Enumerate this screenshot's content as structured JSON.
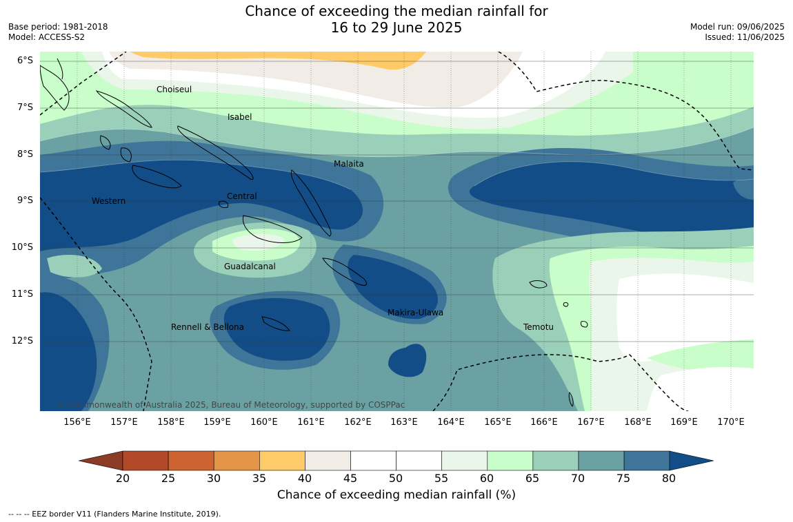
{
  "title": {
    "line1": "Chance of exceeding the median rainfall for",
    "line2": "16 to 29 June 2025"
  },
  "meta_left": {
    "base_period": "Base period: 1981-2018",
    "model": "Model: ACCESS-S2"
  },
  "meta_right": {
    "model_run": "Model run: 09/06/2025",
    "issued": "Issued: 11/06/2025"
  },
  "lat_labels": [
    "6°S",
    "7°S",
    "8°S",
    "9°S",
    "10°S",
    "11°S",
    "12°S"
  ],
  "lon_labels": [
    "156°E",
    "157°E",
    "158°E",
    "159°E",
    "160°E",
    "161°E",
    "162°E",
    "163°E",
    "164°E",
    "165°E",
    "166°E",
    "167°E",
    "168°E",
    "169°E",
    "170°E"
  ],
  "places": {
    "choiseul": "Choiseul",
    "isabel": "Isabel",
    "malaita": "Malaita",
    "western": "Western",
    "central": "Central",
    "guadalcanal": "Guadalcanal",
    "makira": "Makira-Ulawa",
    "rennell": "Rennell & Bellona",
    "temotu": "Temotu"
  },
  "copyright": "© Commonwealth of Australia 2025, Bureau of Meteorology, supported by COSPPac",
  "colorbar": {
    "title": "Chance of exceeding median rainfall (%)",
    "ticks": [
      "20",
      "25",
      "30",
      "35",
      "40",
      "45",
      "50",
      "55",
      "60",
      "65",
      "70",
      "75",
      "80"
    ],
    "colors": {
      "below20": "#8c3b26",
      "20-25": "#b24a2a",
      "25-30": "#cd6331",
      "30-35": "#e59547",
      "35-40": "#fecb68",
      "40-45": "#f1ece6",
      "45-50": "#ffffff",
      "50-55": "#ffffff",
      "55-60": "#e9f6e9",
      "60-65": "#c9fdc9",
      "65-70": "#9acfb9",
      "70-75": "#6ba1a2",
      "75-80": "#3e7598",
      "above80": "#124d87"
    }
  },
  "footnote": "--  --  -- EEZ border V11 (Flanders Marine Institute, 2019)."
}
